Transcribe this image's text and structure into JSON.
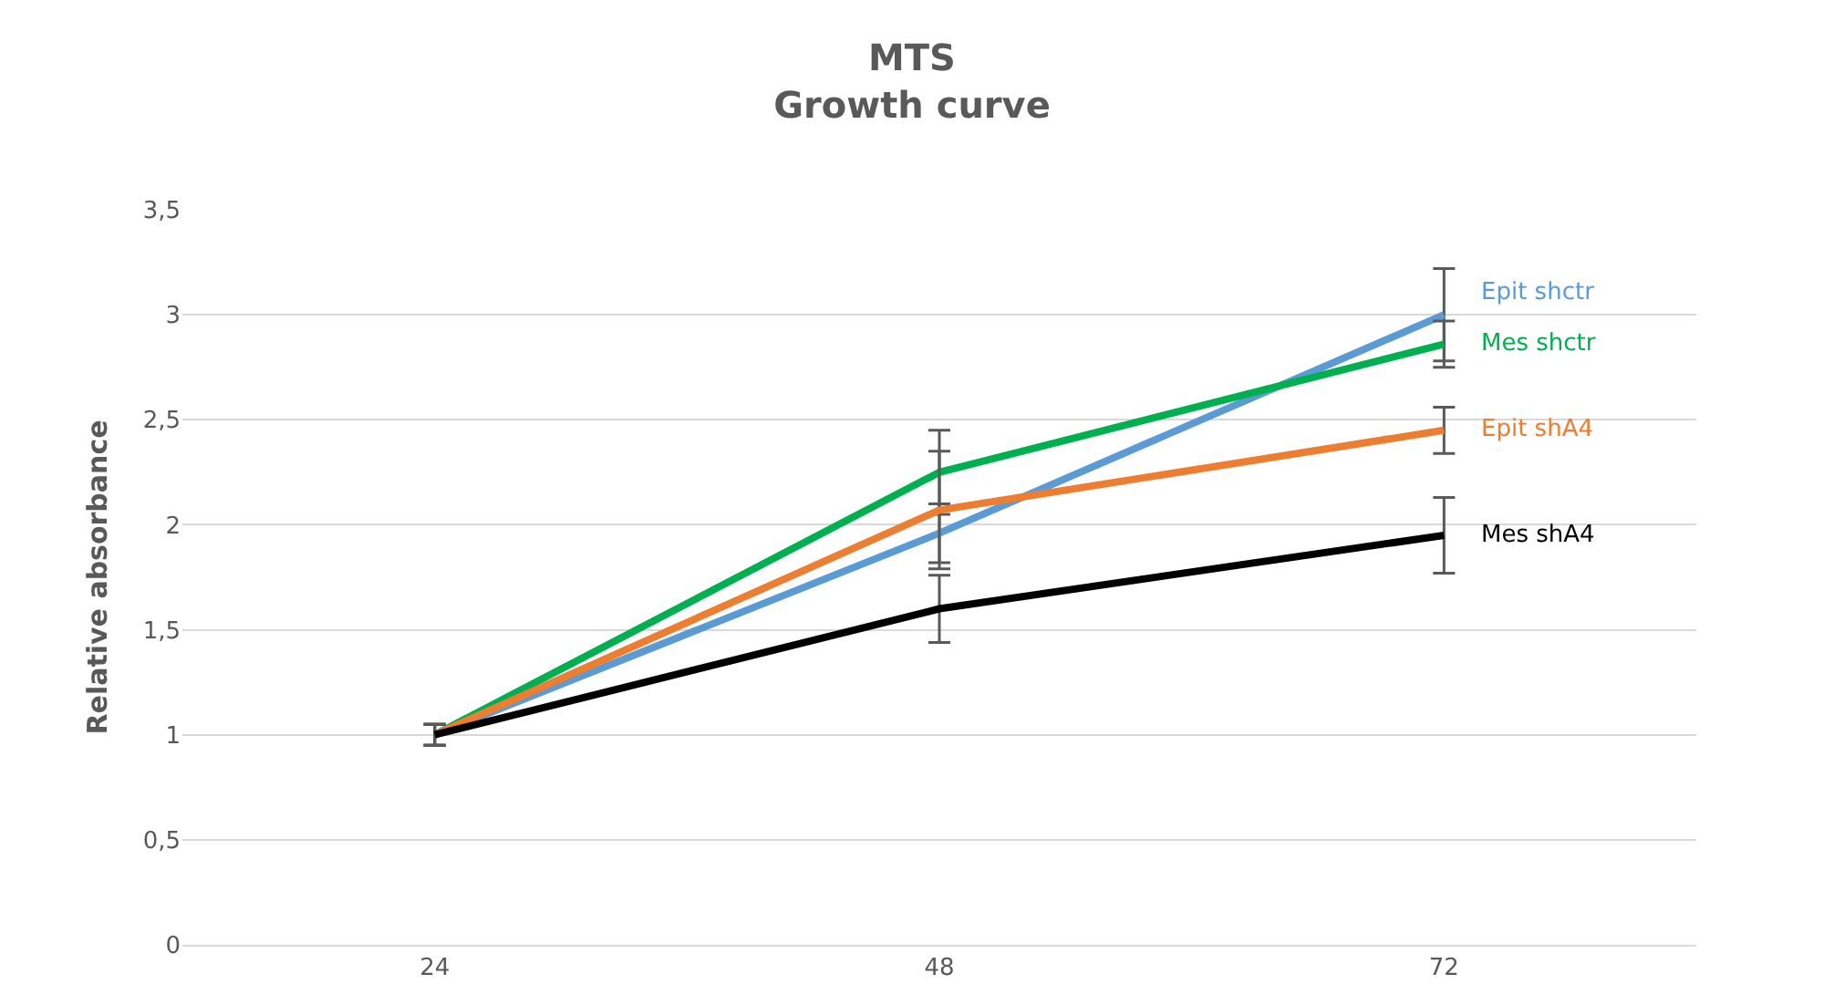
{
  "chart_data": {
    "type": "line",
    "title": "MTS\nGrowth curve",
    "ylabel": "Relative absorbance",
    "categories": [
      "24",
      "48",
      "72"
    ],
    "series": [
      {
        "name": "Epit shctr",
        "color": "#5b9bd5",
        "values": [
          1,
          1.96,
          3.0
        ],
        "errors": [
          0.05,
          0.14,
          0.22
        ]
      },
      {
        "name": "Mes shctr",
        "color": "#00b050",
        "values": [
          1,
          2.25,
          2.86
        ],
        "errors": [
          0.05,
          0.2,
          0.11
        ]
      },
      {
        "name": "Epit shA4",
        "color": "#ed7d31",
        "values": [
          1,
          2.07,
          2.45
        ],
        "errors": [
          0.05,
          0.28,
          0.11
        ]
      },
      {
        "name": "Mes shA4",
        "color": "#000000",
        "values": [
          1,
          1.6,
          1.95
        ],
        "errors": [
          0.05,
          0.16,
          0.18
        ]
      }
    ],
    "ylim": [
      0,
      3.5
    ],
    "yticks": [
      {
        "value": 0,
        "label": "0"
      },
      {
        "value": 0.5,
        "label": "0,5"
      },
      {
        "value": 1,
        "label": "1"
      },
      {
        "value": 1.5,
        "label": "1,5"
      },
      {
        "value": 2,
        "label": "2"
      },
      {
        "value": 2.5,
        "label": "2,5"
      },
      {
        "value": 3,
        "label": "3"
      },
      {
        "value": 3.5,
        "label": "3,5"
      }
    ],
    "grid": "y",
    "legend": false,
    "marker": "none",
    "line_style": "solid"
  }
}
